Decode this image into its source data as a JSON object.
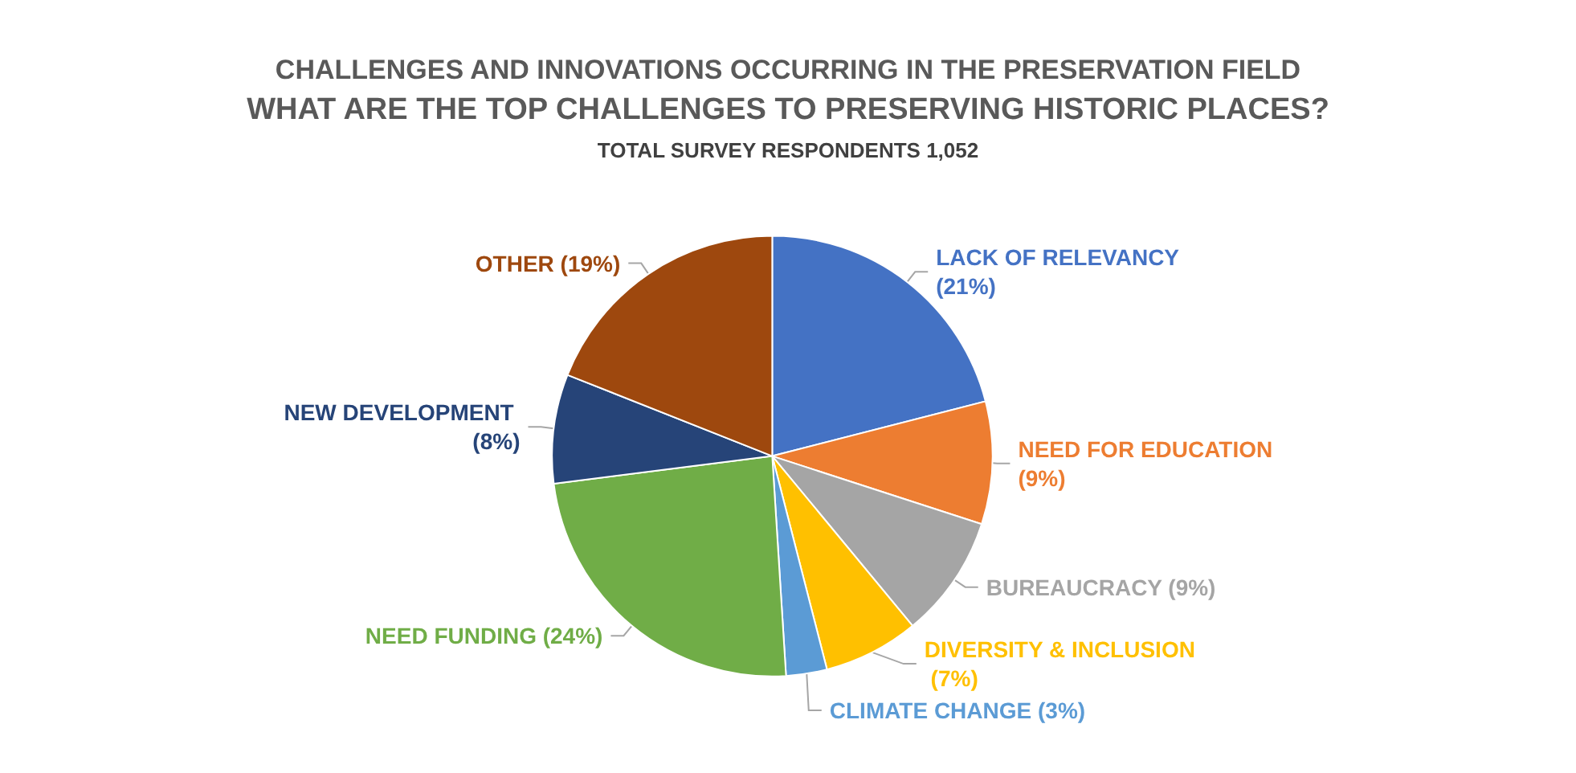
{
  "chart_data": {
    "type": "pie",
    "title": "CHALLENGES AND INNOVATIONS OCCURRING IN THE PRESERVATION FIELD",
    "subtitle": "WHAT ARE THE TOP CHALLENGES TO PRESERVING HISTORIC PLACES?",
    "annotations": [
      "TOTAL SURVEY RESPONDENTS 1,052"
    ],
    "categories": [
      "LACK OF RELEVANCY",
      "NEED FOR EDUCATION",
      "BUREAUCRACY",
      "DIVERSITY & INCLUSION",
      "CLIMATE CHANGE",
      "NEED FUNDING",
      "NEW DEVELOPMENT",
      "OTHER"
    ],
    "values": [
      21,
      9,
      9,
      7,
      3,
      24,
      8,
      19
    ],
    "colors": [
      "#4472c4",
      "#ed7d31",
      "#a5a5a5",
      "#ffc000",
      "#5b9bd5",
      "#70ad47",
      "#264478",
      "#9e480e"
    ],
    "value_labels": [
      "(21%)",
      "(9%)",
      "(9%)",
      "(7%)",
      "(3%)",
      "(24%)",
      "(8%)",
      "(19%)"
    ]
  }
}
